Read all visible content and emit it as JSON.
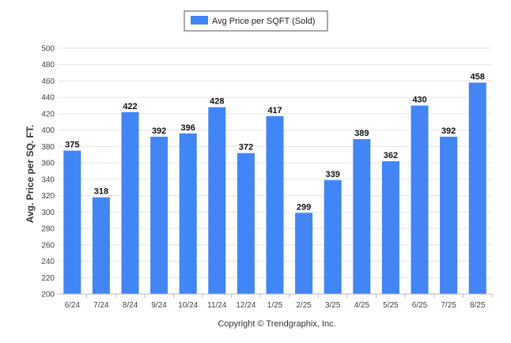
{
  "chart_data": {
    "type": "bar",
    "categories": [
      "6/24",
      "7/24",
      "8/24",
      "9/24",
      "10/24",
      "11/24",
      "12/24",
      "1/25",
      "2/25",
      "3/25",
      "4/25",
      "5/25",
      "6/25",
      "7/25",
      "8/25"
    ],
    "series": [
      {
        "name": "Avg Price per SQFT (Sold)",
        "values": [
          375,
          318,
          422,
          392,
          396,
          428,
          372,
          417,
          299,
          339,
          389,
          362,
          430,
          392,
          458
        ],
        "color": "#4285f4"
      }
    ],
    "ylabel": "Avg. Price per SQ. FT.",
    "xlabel": "",
    "ylim": [
      200,
      500
    ],
    "yticks": [
      200,
      220,
      240,
      260,
      280,
      300,
      320,
      340,
      360,
      380,
      400,
      420,
      440,
      460,
      480,
      500
    ],
    "grid": true,
    "legend_position": "top-center"
  },
  "footer": {
    "copyright": "Copyright © Trendgraphix, Inc."
  }
}
